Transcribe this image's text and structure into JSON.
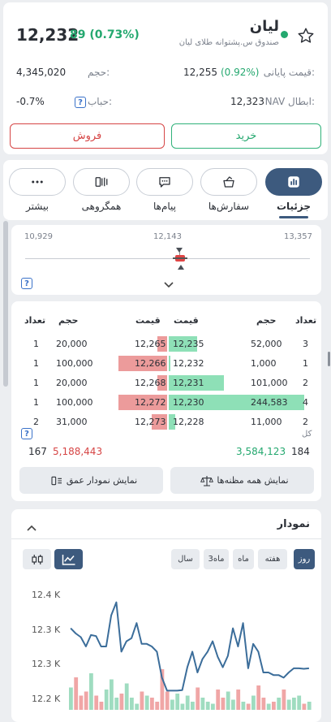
{
  "header": {
    "symbol": "لیان",
    "fund_name": "صندوق س.پشتوانه طلای لیان",
    "last_price": "12,232",
    "change": "89 (0.73%)",
    "volume_label": "حجم:",
    "volume": "4,345,020",
    "closing_label": "قیمت پایانی:",
    "closing_value": "12,255",
    "closing_change": "(0.92%)",
    "nav_label": "NAV ابطال:",
    "nav_value": "12,323",
    "bubble_label": "حباب:",
    "bubble_value": "-0.7%",
    "status_color": "#24a86f"
  },
  "actions": {
    "buy": "خرید",
    "sell": "فروش"
  },
  "tabs": [
    {
      "label": "جزئیات",
      "icon": "bar-chart-icon",
      "active": true
    },
    {
      "label": "سفارش‌ها",
      "icon": "bucket-icon"
    },
    {
      "label": "پیام‌ها",
      "icon": "chat-icon"
    },
    {
      "label": "همگروهی",
      "icon": "group-icon"
    },
    {
      "label": "بیشتر",
      "icon": "more-icon"
    }
  ],
  "range": {
    "low": "10,929",
    "mid": "12,143",
    "high": "13,357"
  },
  "orderbook": {
    "headers": {
      "count": "تعداد",
      "volume": "حجم",
      "price": "قیمت"
    },
    "rows": [
      {
        "buy_count": "3",
        "buy_volume": "52,000",
        "buy_price": "12,235",
        "sell_price": "12,265",
        "sell_volume": "20,000",
        "sell_count": "1"
      },
      {
        "buy_count": "1",
        "buy_volume": "1,000",
        "buy_price": "12,232",
        "sell_price": "12,266",
        "sell_volume": "100,000",
        "sell_count": "1"
      },
      {
        "buy_count": "2",
        "buy_volume": "101,000",
        "buy_price": "12,231",
        "sell_price": "12,268",
        "sell_volume": "20,000",
        "sell_count": "1"
      },
      {
        "buy_count": "4",
        "buy_volume": "244,583",
        "buy_price": "12,230",
        "sell_price": "12,272",
        "sell_volume": "100,000",
        "sell_count": "1"
      },
      {
        "buy_count": "2",
        "buy_volume": "11,000",
        "buy_price": "12,228",
        "sell_price": "12,273",
        "sell_volume": "31,000",
        "sell_count": "2"
      }
    ],
    "buy_fill": [
      0.21,
      0.004,
      0.41,
      1.0,
      0.045
    ],
    "sell_fill": [
      0.2,
      1.0,
      0.2,
      1.0,
      0.31
    ],
    "total_label": "کل",
    "total_buy_count": "184",
    "total_buy_volume": "3,584,123",
    "total_sell_volume": "5,188,443",
    "total_sell_count": "167",
    "show_suspects": "نمایش همه مظنه‌ها",
    "show_depth": "نمایش نمودار عمق"
  },
  "chart_section": {
    "title": "نمودار",
    "periods": [
      "روز",
      "هفته",
      "ماه",
      "3ماه",
      "سال"
    ],
    "active_period": "روز"
  },
  "chart_data": {
    "type": "line",
    "y_ticks": [
      "12.4 K",
      "12.3 K",
      "12.3 K",
      "12.2 K"
    ],
    "ylim": [
      12200,
      12400
    ],
    "line_color": "#3b6d9a",
    "values": [
      12335,
      12325,
      12318,
      12300,
      12322,
      12320,
      12300,
      12300,
      12360,
      12385,
      12290,
      12310,
      12316,
      12345,
      12305,
      12305,
      12300,
      12290,
      12240,
      12215,
      12215,
      12215,
      12216,
      12260,
      12290,
      12250,
      12276,
      12290,
      12310,
      12280,
      12260,
      12282,
      12335,
      12300,
      12345,
      12258,
      12305,
      12290,
      12250,
      12250,
      12245,
      12245,
      12240,
      12250,
      12258,
      12258,
      12257,
      12258
    ],
    "volumes": [
      0.55,
      0.8,
      0.35,
      0.45,
      0.9,
      0.35,
      0.2,
      0.5,
      0.75,
      0.3,
      0.4,
      0.65,
      0.3,
      0.15,
      0.45,
      0.35,
      0.3,
      0.2,
      1.0,
      0.45,
      0.25,
      0.4,
      0.15,
      0.35,
      0.2,
      0.55,
      0.3,
      0.2,
      0.15,
      0.5,
      0.3,
      0.45,
      0.25,
      0.5,
      0.2,
      0.15,
      0.35,
      0.6,
      0.3,
      0.15,
      0.2,
      0.3,
      0.5,
      0.25,
      0.3,
      0.35,
      0.15,
      0.2
    ]
  }
}
